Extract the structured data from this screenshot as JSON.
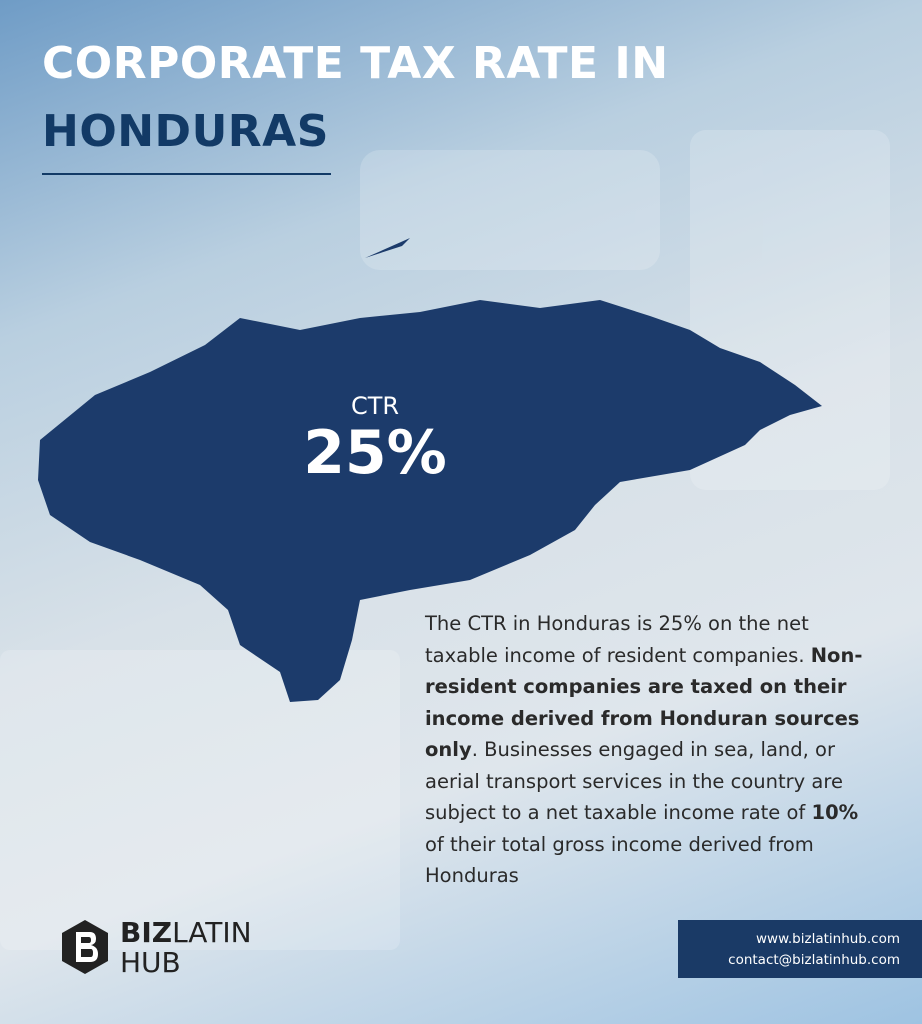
{
  "header": {
    "title_lines": [
      "CORPORATE TAX RATE IN",
      "HONDURAS"
    ]
  },
  "map": {
    "label": "CTR",
    "rate": "25%"
  },
  "paragraph": [
    {
      "text": "The CTR in Honduras is 25% on the net taxable income of resident companies. ",
      "bold": false
    },
    {
      "text": "Non-resident companies are taxed on their income derived from Honduran sources only",
      "bold": true
    },
    {
      "text": ". Businesses engaged in sea, land, or aerial transport services in the country are subject to a net taxable income rate of ",
      "bold": false
    },
    {
      "text": "10%",
      "bold": true
    },
    {
      "text": " of their total gross income derived from Honduras",
      "bold": false
    }
  ],
  "logo": {
    "biz": "BIZ",
    "latin": "LATIN",
    "hub": "HUB"
  },
  "contact": {
    "website": "www.bizlatinhub.com",
    "email": "contact@bizlatinhub.com"
  }
}
